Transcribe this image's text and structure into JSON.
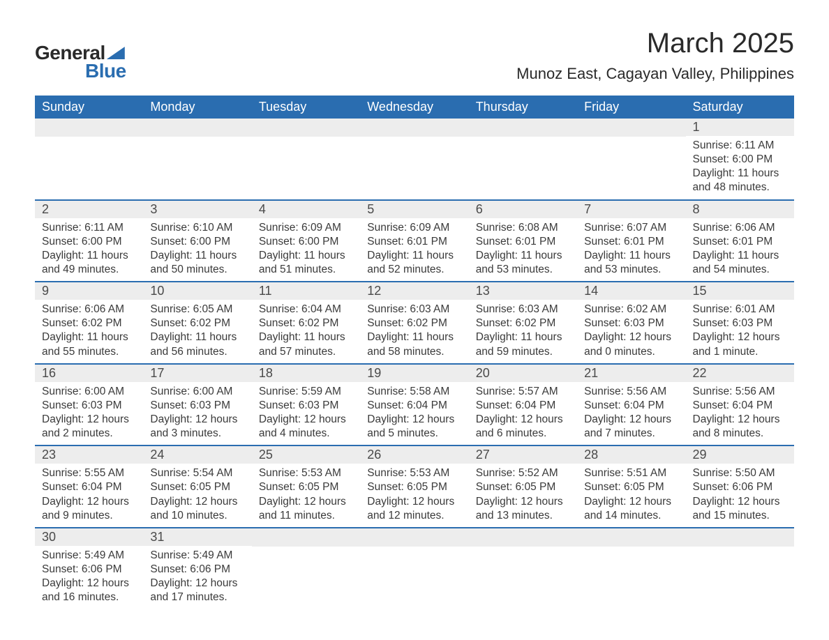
{
  "logo": {
    "text1": "General",
    "text2": "Blue"
  },
  "title": "March 2025",
  "location": "Munoz East, Cagayan Valley, Philippines",
  "colors": {
    "header_bg": "#2a6db0",
    "header_text": "#ffffff",
    "row_border": "#2a6db0",
    "daynum_bg": "#ededed",
    "body_text": "#3a3a3a",
    "page_bg": "#ffffff"
  },
  "typography": {
    "title_fontsize": 40,
    "location_fontsize": 22,
    "weekday_fontsize": 18,
    "daynum_fontsize": 18,
    "body_fontsize": 15.5
  },
  "weekdays": [
    "Sunday",
    "Monday",
    "Tuesday",
    "Wednesday",
    "Thursday",
    "Friday",
    "Saturday"
  ],
  "weeks": [
    [
      null,
      null,
      null,
      null,
      null,
      null,
      {
        "n": "1",
        "sr": "Sunrise: 6:11 AM",
        "ss": "Sunset: 6:00 PM",
        "d1": "Daylight: 11 hours",
        "d2": "and 48 minutes."
      }
    ],
    [
      {
        "n": "2",
        "sr": "Sunrise: 6:11 AM",
        "ss": "Sunset: 6:00 PM",
        "d1": "Daylight: 11 hours",
        "d2": "and 49 minutes."
      },
      {
        "n": "3",
        "sr": "Sunrise: 6:10 AM",
        "ss": "Sunset: 6:00 PM",
        "d1": "Daylight: 11 hours",
        "d2": "and 50 minutes."
      },
      {
        "n": "4",
        "sr": "Sunrise: 6:09 AM",
        "ss": "Sunset: 6:00 PM",
        "d1": "Daylight: 11 hours",
        "d2": "and 51 minutes."
      },
      {
        "n": "5",
        "sr": "Sunrise: 6:09 AM",
        "ss": "Sunset: 6:01 PM",
        "d1": "Daylight: 11 hours",
        "d2": "and 52 minutes."
      },
      {
        "n": "6",
        "sr": "Sunrise: 6:08 AM",
        "ss": "Sunset: 6:01 PM",
        "d1": "Daylight: 11 hours",
        "d2": "and 53 minutes."
      },
      {
        "n": "7",
        "sr": "Sunrise: 6:07 AM",
        "ss": "Sunset: 6:01 PM",
        "d1": "Daylight: 11 hours",
        "d2": "and 53 minutes."
      },
      {
        "n": "8",
        "sr": "Sunrise: 6:06 AM",
        "ss": "Sunset: 6:01 PM",
        "d1": "Daylight: 11 hours",
        "d2": "and 54 minutes."
      }
    ],
    [
      {
        "n": "9",
        "sr": "Sunrise: 6:06 AM",
        "ss": "Sunset: 6:02 PM",
        "d1": "Daylight: 11 hours",
        "d2": "and 55 minutes."
      },
      {
        "n": "10",
        "sr": "Sunrise: 6:05 AM",
        "ss": "Sunset: 6:02 PM",
        "d1": "Daylight: 11 hours",
        "d2": "and 56 minutes."
      },
      {
        "n": "11",
        "sr": "Sunrise: 6:04 AM",
        "ss": "Sunset: 6:02 PM",
        "d1": "Daylight: 11 hours",
        "d2": "and 57 minutes."
      },
      {
        "n": "12",
        "sr": "Sunrise: 6:03 AM",
        "ss": "Sunset: 6:02 PM",
        "d1": "Daylight: 11 hours",
        "d2": "and 58 minutes."
      },
      {
        "n": "13",
        "sr": "Sunrise: 6:03 AM",
        "ss": "Sunset: 6:02 PM",
        "d1": "Daylight: 11 hours",
        "d2": "and 59 minutes."
      },
      {
        "n": "14",
        "sr": "Sunrise: 6:02 AM",
        "ss": "Sunset: 6:03 PM",
        "d1": "Daylight: 12 hours",
        "d2": "and 0 minutes."
      },
      {
        "n": "15",
        "sr": "Sunrise: 6:01 AM",
        "ss": "Sunset: 6:03 PM",
        "d1": "Daylight: 12 hours",
        "d2": "and 1 minute."
      }
    ],
    [
      {
        "n": "16",
        "sr": "Sunrise: 6:00 AM",
        "ss": "Sunset: 6:03 PM",
        "d1": "Daylight: 12 hours",
        "d2": "and 2 minutes."
      },
      {
        "n": "17",
        "sr": "Sunrise: 6:00 AM",
        "ss": "Sunset: 6:03 PM",
        "d1": "Daylight: 12 hours",
        "d2": "and 3 minutes."
      },
      {
        "n": "18",
        "sr": "Sunrise: 5:59 AM",
        "ss": "Sunset: 6:03 PM",
        "d1": "Daylight: 12 hours",
        "d2": "and 4 minutes."
      },
      {
        "n": "19",
        "sr": "Sunrise: 5:58 AM",
        "ss": "Sunset: 6:04 PM",
        "d1": "Daylight: 12 hours",
        "d2": "and 5 minutes."
      },
      {
        "n": "20",
        "sr": "Sunrise: 5:57 AM",
        "ss": "Sunset: 6:04 PM",
        "d1": "Daylight: 12 hours",
        "d2": "and 6 minutes."
      },
      {
        "n": "21",
        "sr": "Sunrise: 5:56 AM",
        "ss": "Sunset: 6:04 PM",
        "d1": "Daylight: 12 hours",
        "d2": "and 7 minutes."
      },
      {
        "n": "22",
        "sr": "Sunrise: 5:56 AM",
        "ss": "Sunset: 6:04 PM",
        "d1": "Daylight: 12 hours",
        "d2": "and 8 minutes."
      }
    ],
    [
      {
        "n": "23",
        "sr": "Sunrise: 5:55 AM",
        "ss": "Sunset: 6:04 PM",
        "d1": "Daylight: 12 hours",
        "d2": "and 9 minutes."
      },
      {
        "n": "24",
        "sr": "Sunrise: 5:54 AM",
        "ss": "Sunset: 6:05 PM",
        "d1": "Daylight: 12 hours",
        "d2": "and 10 minutes."
      },
      {
        "n": "25",
        "sr": "Sunrise: 5:53 AM",
        "ss": "Sunset: 6:05 PM",
        "d1": "Daylight: 12 hours",
        "d2": "and 11 minutes."
      },
      {
        "n": "26",
        "sr": "Sunrise: 5:53 AM",
        "ss": "Sunset: 6:05 PM",
        "d1": "Daylight: 12 hours",
        "d2": "and 12 minutes."
      },
      {
        "n": "27",
        "sr": "Sunrise: 5:52 AM",
        "ss": "Sunset: 6:05 PM",
        "d1": "Daylight: 12 hours",
        "d2": "and 13 minutes."
      },
      {
        "n": "28",
        "sr": "Sunrise: 5:51 AM",
        "ss": "Sunset: 6:05 PM",
        "d1": "Daylight: 12 hours",
        "d2": "and 14 minutes."
      },
      {
        "n": "29",
        "sr": "Sunrise: 5:50 AM",
        "ss": "Sunset: 6:06 PM",
        "d1": "Daylight: 12 hours",
        "d2": "and 15 minutes."
      }
    ],
    [
      {
        "n": "30",
        "sr": "Sunrise: 5:49 AM",
        "ss": "Sunset: 6:06 PM",
        "d1": "Daylight: 12 hours",
        "d2": "and 16 minutes."
      },
      {
        "n": "31",
        "sr": "Sunrise: 5:49 AM",
        "ss": "Sunset: 6:06 PM",
        "d1": "Daylight: 12 hours",
        "d2": "and 17 minutes."
      },
      null,
      null,
      null,
      null,
      null
    ]
  ]
}
